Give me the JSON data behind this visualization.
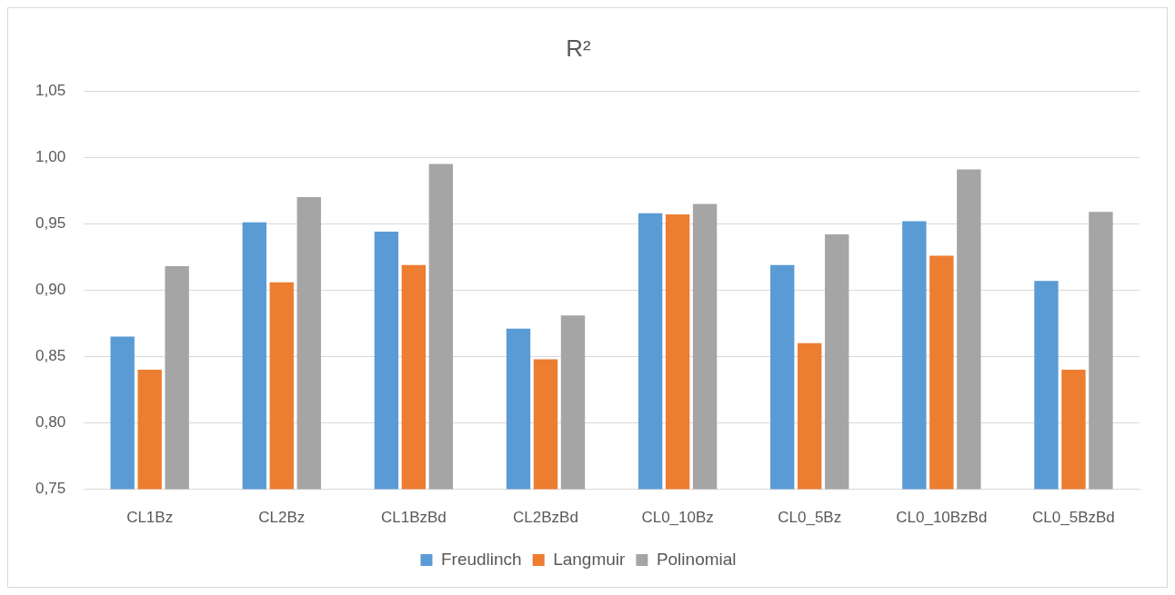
{
  "chart_data": {
    "type": "bar",
    "title": "R²",
    "categories": [
      "CL1Bz",
      "CL2Bz",
      "CL1BzBd",
      "CL2BzBd",
      "CL0_10Bz",
      "CL0_5Bz",
      "CL0_10BzBd",
      "CL0_5BzBd"
    ],
    "series": [
      {
        "name": "Freudlinch",
        "color": "#5b9bd5",
        "values": [
          0.865,
          0.951,
          0.944,
          0.871,
          0.958,
          0.919,
          0.952,
          0.907
        ]
      },
      {
        "name": "Langmuir",
        "color": "#ed7d31",
        "values": [
          0.84,
          0.906,
          0.919,
          0.848,
          0.957,
          0.86,
          0.926,
          0.84
        ]
      },
      {
        "name": "Polinomial",
        "color": "#a5a5a5",
        "values": [
          0.918,
          0.97,
          0.995,
          0.881,
          0.965,
          0.942,
          0.991,
          0.959
        ]
      }
    ],
    "ylim": [
      0.75,
      1.05
    ],
    "yticks": [
      {
        "value": 0.75,
        "label": "0,75"
      },
      {
        "value": 0.8,
        "label": "0,80"
      },
      {
        "value": 0.85,
        "label": "0,85"
      },
      {
        "value": 0.9,
        "label": "0,90"
      },
      {
        "value": 0.95,
        "label": "0,95"
      },
      {
        "value": 1.0,
        "label": "1,00"
      },
      {
        "value": 1.05,
        "label": "1,05"
      }
    ],
    "grid": "y",
    "legend": "bottom"
  }
}
